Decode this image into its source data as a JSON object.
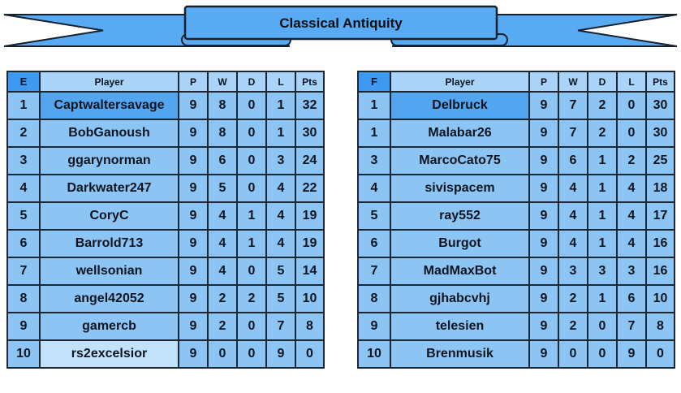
{
  "banner": {
    "title": "Classical Antiquity"
  },
  "colors": {
    "ribbon_blue": "#58aaf2",
    "cell_blue": "#8cc5f4",
    "header_blue": "#a9d4f8",
    "group_letter_blue": "#3e9af0",
    "leader_highlight_blue": "#54a5f0",
    "last_place_light_blue": "#c2e1fa",
    "border_dark": "#1b2734"
  },
  "tables": [
    {
      "group": "E",
      "columns": [
        "Player",
        "P",
        "W",
        "D",
        "L",
        "Pts"
      ],
      "rows": [
        {
          "rank": "1",
          "player": "Captwaltersavage",
          "p": "9",
          "w": "8",
          "d": "0",
          "l": "1",
          "pts": "32",
          "highlight": "dark"
        },
        {
          "rank": "2",
          "player": "BobGanoush",
          "p": "9",
          "w": "8",
          "d": "0",
          "l": "1",
          "pts": "30",
          "highlight": ""
        },
        {
          "rank": "3",
          "player": "ggarynorman",
          "p": "9",
          "w": "6",
          "d": "0",
          "l": "3",
          "pts": "24",
          "highlight": ""
        },
        {
          "rank": "4",
          "player": "Darkwater247",
          "p": "9",
          "w": "5",
          "d": "0",
          "l": "4",
          "pts": "22",
          "highlight": ""
        },
        {
          "rank": "5",
          "player": "CoryC",
          "p": "9",
          "w": "4",
          "d": "1",
          "l": "4",
          "pts": "19",
          "highlight": ""
        },
        {
          "rank": "6",
          "player": "Barrold713",
          "p": "9",
          "w": "4",
          "d": "1",
          "l": "4",
          "pts": "19",
          "highlight": ""
        },
        {
          "rank": "7",
          "player": "wellsonian",
          "p": "9",
          "w": "4",
          "d": "0",
          "l": "5",
          "pts": "14",
          "highlight": ""
        },
        {
          "rank": "8",
          "player": "angel42052",
          "p": "9",
          "w": "2",
          "d": "2",
          "l": "5",
          "pts": "10",
          "highlight": ""
        },
        {
          "rank": "9",
          "player": "gamercb",
          "p": "9",
          "w": "2",
          "d": "0",
          "l": "7",
          "pts": "8",
          "highlight": ""
        },
        {
          "rank": "10",
          "player": "rs2excelsior",
          "p": "9",
          "w": "0",
          "d": "0",
          "l": "9",
          "pts": "0",
          "highlight": "light"
        }
      ]
    },
    {
      "group": "F",
      "columns": [
        "Player",
        "P",
        "W",
        "D",
        "L",
        "Pts"
      ],
      "rows": [
        {
          "rank": "1",
          "player": "Delbruck",
          "p": "9",
          "w": "7",
          "d": "2",
          "l": "0",
          "pts": "30",
          "highlight": "dark"
        },
        {
          "rank": "1",
          "player": "Malabar26",
          "p": "9",
          "w": "7",
          "d": "2",
          "l": "0",
          "pts": "30",
          "highlight": ""
        },
        {
          "rank": "3",
          "player": "MarcoCato75",
          "p": "9",
          "w": "6",
          "d": "1",
          "l": "2",
          "pts": "25",
          "highlight": ""
        },
        {
          "rank": "4",
          "player": "sivispacem",
          "p": "9",
          "w": "4",
          "d": "1",
          "l": "4",
          "pts": "18",
          "highlight": ""
        },
        {
          "rank": "5",
          "player": "ray552",
          "p": "9",
          "w": "4",
          "d": "1",
          "l": "4",
          "pts": "17",
          "highlight": ""
        },
        {
          "rank": "6",
          "player": "Burgot",
          "p": "9",
          "w": "4",
          "d": "1",
          "l": "4",
          "pts": "16",
          "highlight": ""
        },
        {
          "rank": "7",
          "player": "MadMaxBot",
          "p": "9",
          "w": "3",
          "d": "3",
          "l": "3",
          "pts": "16",
          "highlight": ""
        },
        {
          "rank": "8",
          "player": "gjhabcvhj",
          "p": "9",
          "w": "2",
          "d": "1",
          "l": "6",
          "pts": "10",
          "highlight": ""
        },
        {
          "rank": "9",
          "player": "telesien",
          "p": "9",
          "w": "2",
          "d": "0",
          "l": "7",
          "pts": "8",
          "highlight": ""
        },
        {
          "rank": "10",
          "player": "Brenmusik",
          "p": "9",
          "w": "0",
          "d": "0",
          "l": "9",
          "pts": "0",
          "highlight": ""
        }
      ]
    }
  ],
  "chart_data": [
    {
      "type": "table",
      "title": "Classical Antiquity - Group E standings",
      "columns": [
        "E",
        "Player",
        "P",
        "W",
        "D",
        "L",
        "Pts"
      ],
      "rows": [
        [
          "1",
          "Captwaltersavage",
          9,
          8,
          0,
          1,
          32
        ],
        [
          "2",
          "BobGanoush",
          9,
          8,
          0,
          1,
          30
        ],
        [
          "3",
          "ggarynorman",
          9,
          6,
          0,
          3,
          24
        ],
        [
          "4",
          "Darkwater247",
          9,
          5,
          0,
          4,
          22
        ],
        [
          "5",
          "CoryC",
          9,
          4,
          1,
          4,
          19
        ],
        [
          "6",
          "Barrold713",
          9,
          4,
          1,
          4,
          19
        ],
        [
          "7",
          "wellsonian",
          9,
          4,
          0,
          5,
          14
        ],
        [
          "8",
          "angel42052",
          9,
          2,
          2,
          5,
          10
        ],
        [
          "9",
          "gamercb",
          9,
          2,
          0,
          7,
          8
        ],
        [
          "10",
          "rs2excelsior",
          9,
          0,
          0,
          9,
          0
        ]
      ]
    },
    {
      "type": "table",
      "title": "Classical Antiquity - Group F standings",
      "columns": [
        "F",
        "Player",
        "P",
        "W",
        "D",
        "L",
        "Pts"
      ],
      "rows": [
        [
          "1",
          "Delbruck",
          9,
          7,
          2,
          0,
          30
        ],
        [
          "1",
          "Malabar26",
          9,
          7,
          2,
          0,
          30
        ],
        [
          "3",
          "MarcoCato75",
          9,
          6,
          1,
          2,
          25
        ],
        [
          "4",
          "sivispacem",
          9,
          4,
          1,
          4,
          18
        ],
        [
          "5",
          "ray552",
          9,
          4,
          1,
          4,
          17
        ],
        [
          "6",
          "Burgot",
          9,
          4,
          1,
          4,
          16
        ],
        [
          "7",
          "MadMaxBot",
          9,
          3,
          3,
          3,
          16
        ],
        [
          "8",
          "gjhabcvhj",
          9,
          2,
          1,
          6,
          10
        ],
        [
          "9",
          "telesien",
          9,
          2,
          0,
          7,
          8
        ],
        [
          "10",
          "Brenmusik",
          9,
          0,
          0,
          9,
          0
        ]
      ]
    }
  ]
}
